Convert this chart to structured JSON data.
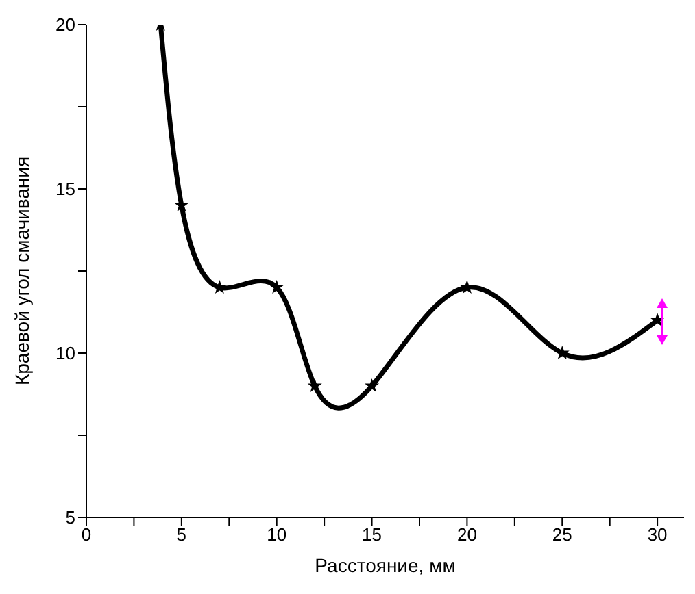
{
  "chart_data": {
    "type": "line",
    "xlabel": "Расстояние, мм",
    "ylabel": "Краевой угол смачивания",
    "x": [
      3.9,
      5,
      7,
      10,
      12,
      15,
      20,
      25,
      30
    ],
    "series": [
      {
        "color": "#000000",
        "values": [
          20,
          14.5,
          12,
          12,
          9,
          9,
          12,
          10,
          11
        ]
      }
    ],
    "xlim": [
      0,
      31.4
    ],
    "xticks": [
      0,
      {
        "value": 2.5,
        "label": null
      },
      5,
      {
        "value": 7.5,
        "label": null
      },
      10,
      {
        "value": 12.5,
        "label": null
      },
      15,
      {
        "value": 17.5,
        "label": null
      },
      20,
      {
        "value": 22.5,
        "label": null
      },
      25,
      {
        "value": 27.5,
        "label": null
      },
      30
    ],
    "ylim": [
      5,
      20
    ],
    "yticks": [
      5,
      {
        "value": 7.5,
        "label": null
      },
      10,
      {
        "value": 12.5,
        "label": null
      },
      15,
      {
        "value": 17.5,
        "label": null
      },
      20
    ],
    "grid": false,
    "legend": false,
    "marker": "star",
    "line_style": "solid"
  }
}
